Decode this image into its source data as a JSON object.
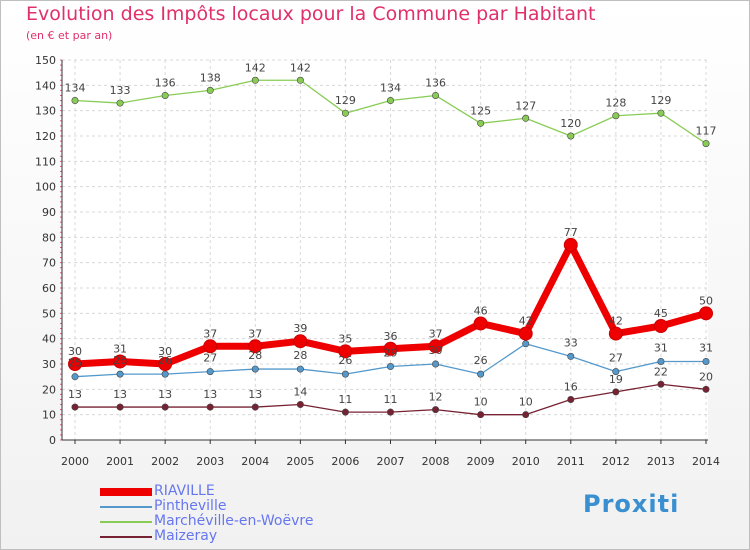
{
  "title": "Evolution des Impôts locaux pour la Commune par Habitant",
  "subtitle": "(en € et par an)",
  "brand": "Proxiti",
  "chart_data": {
    "type": "line",
    "x": [
      "2000",
      "2001",
      "2002",
      "2003",
      "2004",
      "2005",
      "2006",
      "2007",
      "2008",
      "2009",
      "2010",
      "2011",
      "2012",
      "2013",
      "2014"
    ],
    "ylim": [
      0,
      150
    ],
    "yticks": [
      0,
      10,
      20,
      30,
      40,
      50,
      60,
      70,
      80,
      90,
      100,
      110,
      120,
      130,
      140,
      150
    ],
    "grid": true,
    "legend_position": "bottom-left",
    "series": [
      {
        "name": "RIAVILLE",
        "color": "#ee0000",
        "values": [
          30,
          31,
          30,
          37,
          37,
          39,
          35,
          36,
          37,
          46,
          42,
          77,
          42,
          45,
          50
        ]
      },
      {
        "name": "Pintheville",
        "color": "#5599cc",
        "values": [
          25,
          26,
          26,
          27,
          28,
          28,
          26,
          29,
          30,
          26,
          38,
          33,
          27,
          31,
          31
        ]
      },
      {
        "name": "Marchéville-en-Woëvre",
        "color": "#88cc55",
        "values": [
          134,
          133,
          136,
          138,
          142,
          142,
          129,
          134,
          136,
          125,
          127,
          120,
          128,
          129,
          117
        ]
      },
      {
        "name": "Maizeray",
        "color": "#772233",
        "values": [
          13,
          13,
          13,
          13,
          13,
          14,
          11,
          11,
          12,
          10,
          10,
          16,
          19,
          22,
          20
        ]
      }
    ],
    "labels": {
      "RIAVILLE": [
        "30",
        "31",
        "30",
        "37",
        "37",
        "39",
        "35",
        "36",
        "37",
        "46",
        "42",
        "77",
        "42",
        "45",
        "50"
      ],
      "Pintheville": [
        "25",
        "26",
        "26",
        "27",
        "28",
        "28",
        "26",
        "29",
        "30",
        "26",
        "",
        "33",
        "27",
        "31",
        "31"
      ],
      "Marchéville-en-Woëvre": [
        "134",
        "133",
        "136",
        "138",
        "142",
        "142",
        "129",
        "134",
        "136",
        "125",
        "127",
        "120",
        "128",
        "129",
        "117"
      ],
      "Maizeray": [
        "13",
        "13",
        "13",
        "13",
        "13",
        "14",
        "11",
        "11",
        "12",
        "10",
        "10",
        "16",
        "19",
        "22",
        "20"
      ]
    }
  }
}
